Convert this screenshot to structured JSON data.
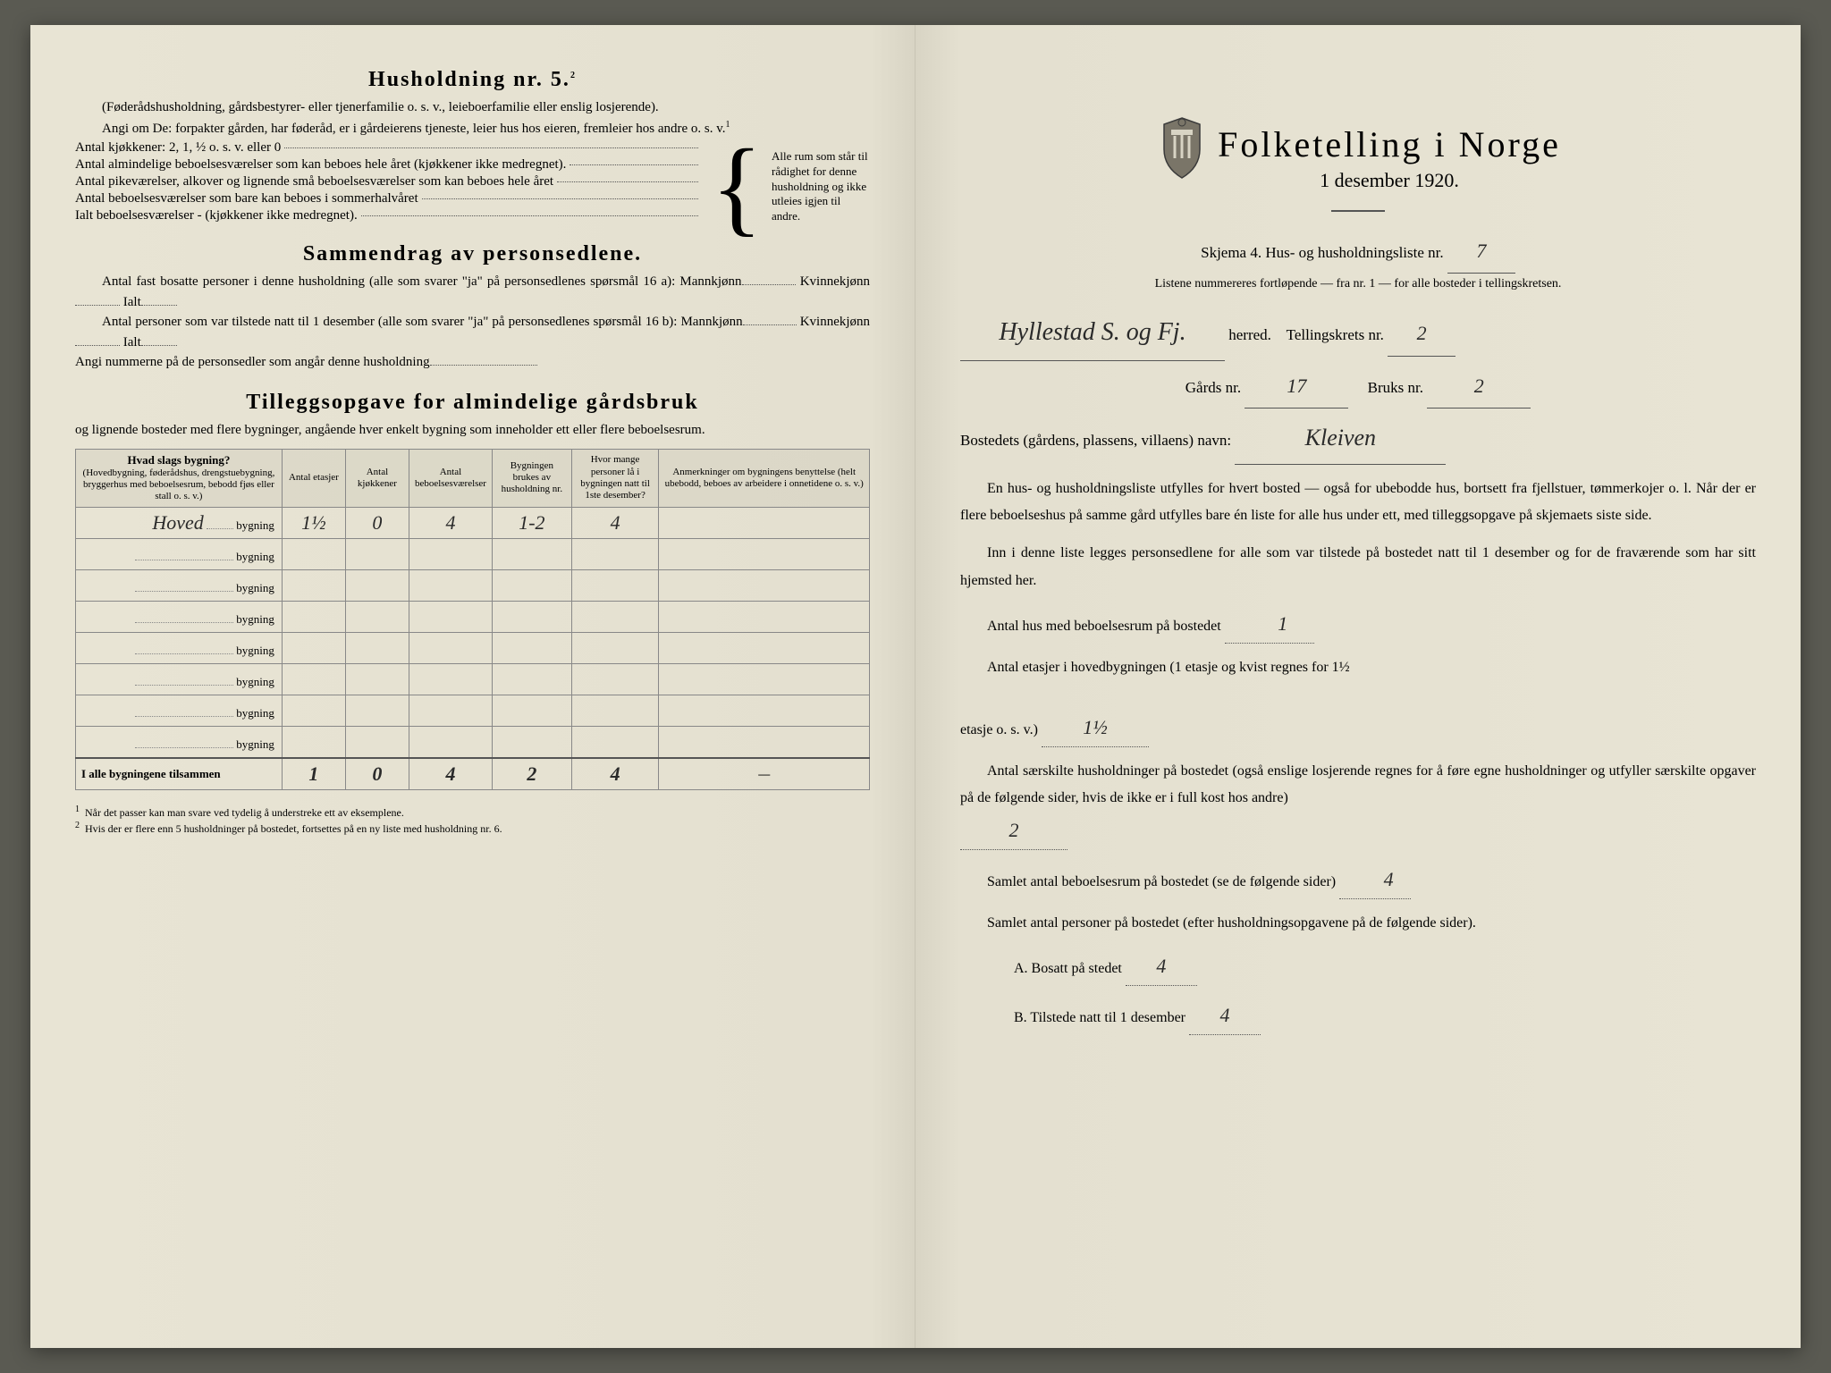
{
  "left": {
    "heading5": "Husholdning nr. 5.",
    "heading5_sup": "2",
    "sub5": "(Føderådshusholdning, gårdsbestyrer- eller tjenerfamilie o. s. v., leieboerfamilie eller enslig losjerende).",
    "angi": "Angi om De: forpakter gården, har føderåd, er i gårdeierens tjeneste, leier hus hos eieren, fremleier hos andre o. s. v.",
    "sup1": "1",
    "kjokkener": "Antal kjøkkener: 2, 1, ½ o. s. v. eller 0",
    "alm": "Antal almindelige beboelsesværelser som kan beboes hele året (kjøkkener ikke medregnet).",
    "pike": "Antal pikeværelser, alkover og lignende små beboelsesværelser som kan beboes hele året",
    "sommer": "Antal beboelsesværelser som bare kan beboes i sommerhalvåret",
    "ialt": "Ialt beboelsesværelser - (kjøkkener ikke medregnet).",
    "brace_text": "Alle rum som står til rådighet for denne husholdning og ikke utleies igjen til andre.",
    "sammendrag_h": "Sammendrag av personsedlene.",
    "sammendrag1": "Antal fast bosatte personer i denne husholdning (alle som svarer \"ja\" på personsedlenes spørsmål 16 a): Mannkjønn",
    "kvinne": "Kvinnekjønn",
    "ialt_label": "Ialt",
    "sammendrag2": "Antal personer som var tilstede natt til 1 desember (alle som svarer \"ja\" på personsedlenes spørsmål 16 b): Mannkjønn",
    "angi_num": "Angi nummerne på de personsedler som angår denne husholdning",
    "tillegg_h": "Tilleggsopgave for almindelige gårdsbruk",
    "tillegg_sub": "og lignende bosteder med flere bygninger, angående hver enkelt bygning som inneholder ett eller flere beboelsesrum.",
    "th1": "Hvad slags bygning?",
    "th1_desc": "(Hovedbygning, føderådshus, drengstuebygning, bryggerhus med beboelsesrum, bebodd fjøs eller stall o. s. v.)",
    "th2": "Antal etasjer",
    "th3": "Antal kjøkkener",
    "th4": "Antal beboelsesværelser",
    "th5": "Bygningen brukes av husholdning nr.",
    "th6": "Hvor mange personer lå i bygningen natt til 1ste desember?",
    "th7": "Anmerkninger om bygningens benyttelse (helt ubebodd, beboes av arbeidere i onnetidene o. s. v.)",
    "bygning_label": "bygning",
    "rows": [
      {
        "name": "Hoved",
        "etasjer": "1½",
        "kjokken": "0",
        "vaer": "4",
        "hush": "1-2",
        "pers": "4",
        "anm": ""
      },
      {
        "name": "",
        "etasjer": "",
        "kjokken": "",
        "vaer": "",
        "hush": "",
        "pers": "",
        "anm": ""
      },
      {
        "name": "",
        "etasjer": "",
        "kjokken": "",
        "vaer": "",
        "hush": "",
        "pers": "",
        "anm": ""
      },
      {
        "name": "",
        "etasjer": "",
        "kjokken": "",
        "vaer": "",
        "hush": "",
        "pers": "",
        "anm": ""
      },
      {
        "name": "",
        "etasjer": "",
        "kjokken": "",
        "vaer": "",
        "hush": "",
        "pers": "",
        "anm": ""
      },
      {
        "name": "",
        "etasjer": "",
        "kjokken": "",
        "vaer": "",
        "hush": "",
        "pers": "",
        "anm": ""
      },
      {
        "name": "",
        "etasjer": "",
        "kjokken": "",
        "vaer": "",
        "hush": "",
        "pers": "",
        "anm": ""
      },
      {
        "name": "",
        "etasjer": "",
        "kjokken": "",
        "vaer": "",
        "hush": "",
        "pers": "",
        "anm": ""
      }
    ],
    "total_label": "I alle bygningene tilsammen",
    "total": {
      "etasjer": "1",
      "kjokken": "0",
      "vaer": "4",
      "hush": "2",
      "pers": "4",
      "anm": "—"
    },
    "fn1": "Når det passer kan man svare ved tydelig å understreke ett av eksemplene.",
    "fn2": "Hvis der er flere enn 5 husholdninger på bostedet, fortsettes på en ny liste med husholdning nr. 6."
  },
  "right": {
    "title": "Folketelling i Norge",
    "date": "1 desember 1920.",
    "skjema": "Skjema 4.  Hus- og husholdningsliste nr.",
    "skjema_val": "7",
    "listene": "Listene nummereres fortløpende — fra nr. 1 — for alle bosteder i tellingskretsen.",
    "herred_val": "Hyllestad S. og Fj.",
    "herred": "herred.",
    "telling": "Tellingskrets nr.",
    "telling_val": "2",
    "gards": "Gårds nr.",
    "gards_val": "17",
    "bruks": "Bruks nr.",
    "bruks_val": "2",
    "bosted": "Bostedets (gårdens, plassens, villaens) navn:",
    "bosted_val": "Kleiven",
    "para1": "En hus- og husholdningsliste utfylles for hvert bosted — også for ubebodde hus, bortsett fra fjellstuer, tømmerkojer o. l. Når der er flere beboelseshus på samme gård utfylles bare én liste for alle hus under ett, med tilleggsopgave på skjemaets siste side.",
    "para2": "Inn i denne liste legges personsedlene for alle som var tilstede på bostedet natt til 1 desember og for de fraværende som har sitt hjemsted her.",
    "q1": "Antal hus med beboelsesrum på bostedet",
    "q1_val": "1",
    "q2a": "Antal etasjer i hovedbygningen (1 etasje og kvist regnes for 1½",
    "q2b": "etasje o. s. v.)",
    "q2_val": "1½",
    "q3a": "Antal særskilte husholdninger på bostedet (også enslige losjerende regnes for å føre egne husholdninger og utfyller særskilte opgaver på de følgende sider, hvis de ikke er i full kost hos andre)",
    "q3_val": "2",
    "q4": "Samlet antal beboelsesrum på bostedet (se de følgende sider)",
    "q4_val": "4",
    "q5": "Samlet antal personer på bostedet (efter husholdningsopgavene på de følgende sider).",
    "q5a": "A.  Bosatt på stedet",
    "q5a_val": "4",
    "q5b": "B.  Tilstede natt til 1 desember",
    "q5b_val": "4"
  }
}
